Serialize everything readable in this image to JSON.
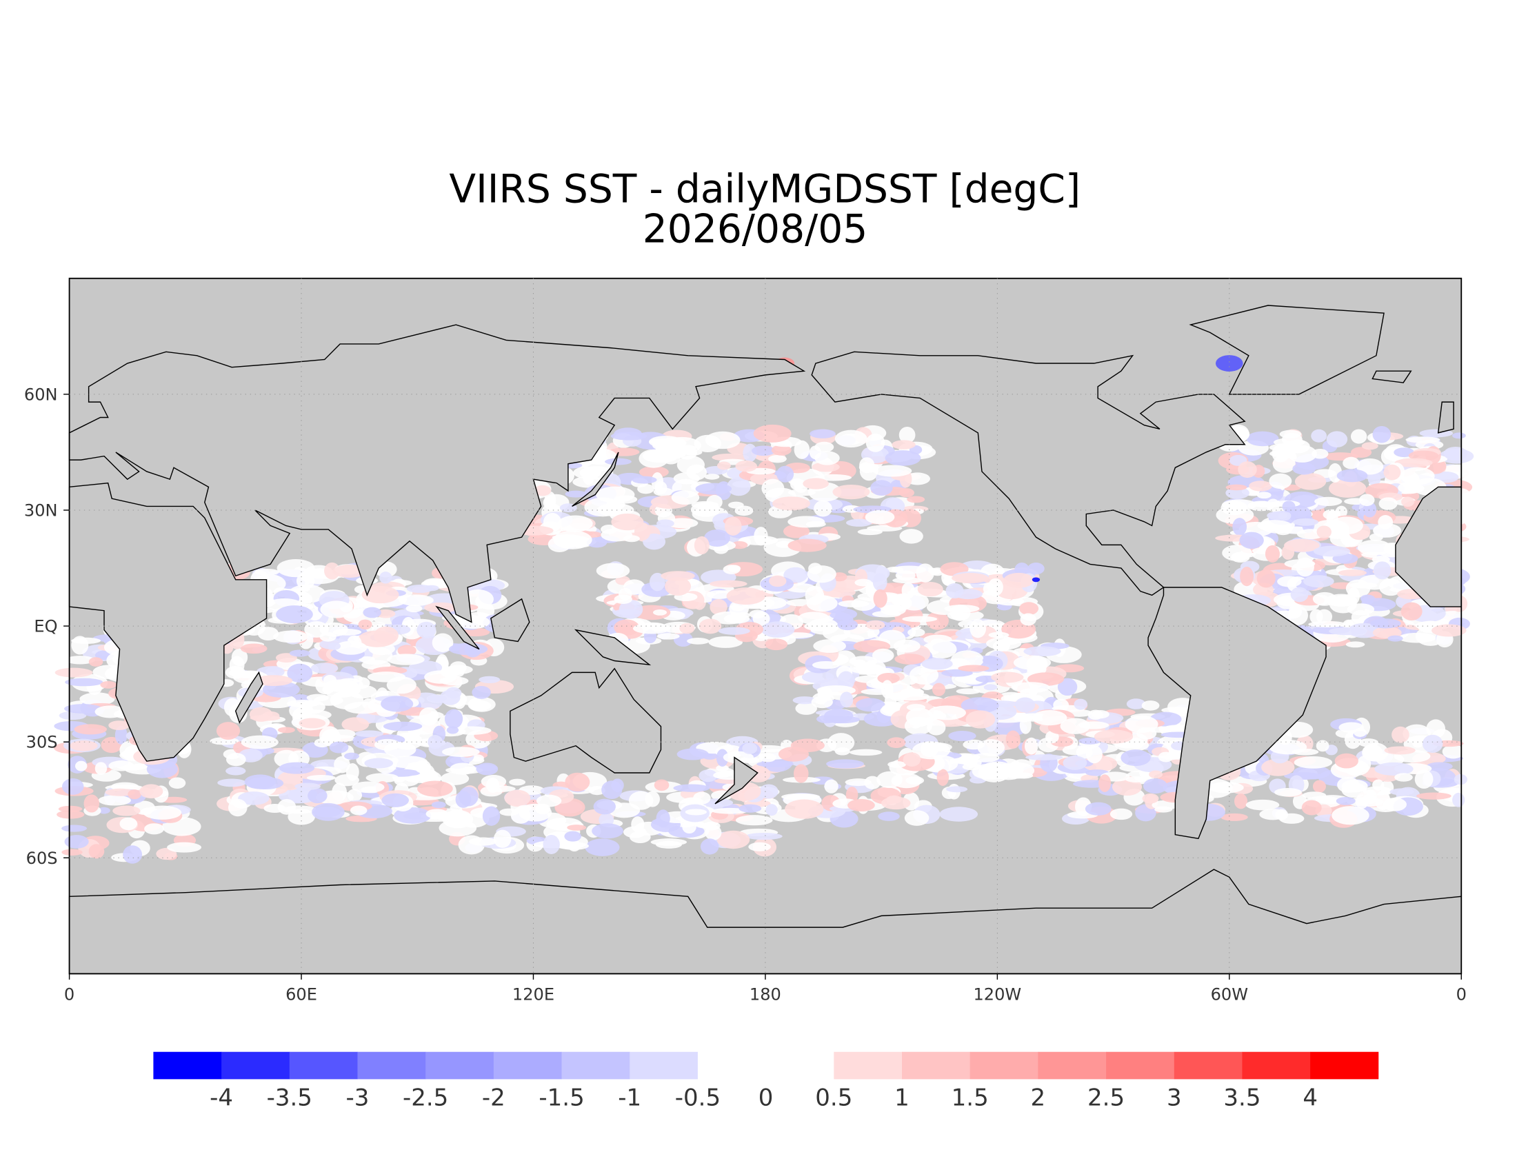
{
  "title": "VIIRS SST - dailyMGDSST [degC]",
  "subtitle": "2026/08/05",
  "map": {
    "lon_labels": [
      "0",
      "60E",
      "120E",
      "180",
      "120W",
      "60W",
      "0"
    ],
    "lat_labels": [
      "60N",
      "30N",
      "EQ",
      "30S",
      "60S"
    ]
  },
  "colorbar": {
    "colors": [
      "#0000ff",
      "#2b2bff",
      "#5656ff",
      "#8080ff",
      "#9696ff",
      "#acacff",
      "#c4c4ff",
      "#dcdcff",
      "#ffffff",
      "#ffffff",
      "#ffdcdc",
      "#ffc4c4",
      "#ffacac",
      "#ff9696",
      "#ff8080",
      "#ff5656",
      "#ff2b2b",
      "#ff0000"
    ],
    "ticks": [
      -4,
      -3.5,
      -3,
      -2.5,
      -2,
      -1.5,
      -1,
      -0.5,
      0,
      0.5,
      1,
      1.5,
      2,
      2.5,
      3,
      3.5,
      4
    ]
  }
}
